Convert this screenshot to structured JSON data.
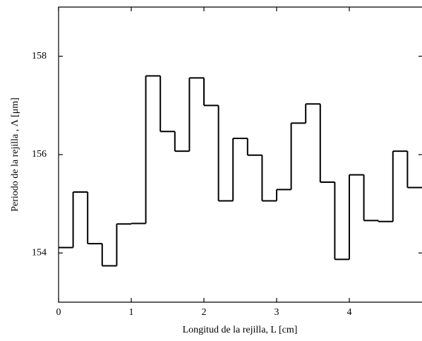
{
  "chart_data": {
    "type": "step",
    "xlabel": "Longitud de la rejilla, L [cm]",
    "ylabel": "Periodo de la rejilla , Λ [μm]",
    "x": [
      0,
      0.2,
      0.4,
      0.6,
      0.8,
      1.0,
      1.2,
      1.4,
      1.6,
      1.8,
      2.0,
      2.2,
      2.4,
      2.6,
      2.8,
      3.0,
      3.2,
      3.4,
      3.6,
      3.8,
      4.0,
      4.2,
      4.4,
      4.6,
      4.8
    ],
    "values": [
      154.11,
      155.24,
      154.19,
      153.74,
      154.59,
      154.6,
      157.6,
      156.47,
      156.07,
      157.56,
      157.0,
      155.06,
      156.33,
      155.99,
      155.06,
      155.29,
      156.64,
      157.03,
      155.44,
      153.87,
      155.59,
      154.66,
      154.64,
      156.07,
      155.33
    ],
    "color": "#000000",
    "xlim": [
      0,
      5
    ],
    "xticks": [
      0,
      1,
      2,
      3,
      4
    ],
    "ylim": [
      153,
      159
    ],
    "yticks": [
      154,
      156,
      158
    ]
  }
}
